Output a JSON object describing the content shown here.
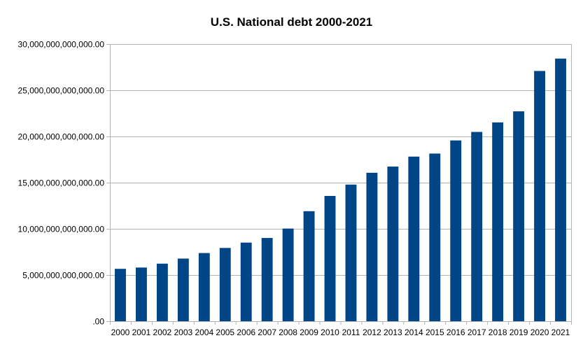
{
  "chart_data": {
    "type": "bar",
    "title": "U.S. National debt 2000-2021",
    "xlabel": "",
    "ylabel": "",
    "categories": [
      "2000",
      "2001",
      "2002",
      "2003",
      "2004",
      "2005",
      "2006",
      "2007",
      "2008",
      "2009",
      "2010",
      "2011",
      "2012",
      "2013",
      "2014",
      "2015",
      "2016",
      "2017",
      "2018",
      "2019",
      "2020",
      "2021"
    ],
    "series": [
      {
        "values": [
          5670000000000,
          5810000000000,
          6230000000000,
          6780000000000,
          7380000000000,
          7930000000000,
          8510000000000,
          9010000000000,
          10030000000000,
          11910000000000,
          13560000000000,
          14790000000000,
          16070000000000,
          16740000000000,
          17820000000000,
          18150000000000,
          19570000000000,
          20490000000000,
          21520000000000,
          22720000000000,
          27090000000000,
          28430000000000
        ]
      }
    ],
    "ylim": [
      0,
      30000000000000
    ],
    "y_ticks": [
      0,
      5000000000000,
      10000000000000,
      15000000000000,
      20000000000000,
      25000000000000,
      30000000000000
    ],
    "y_tick_labels": [
      ".00",
      "5,000,000,000,000.00",
      "10,000,000,000,000.00",
      "15,000,000,000,000.00",
      "20,000,000,000,000.00",
      "25,000,000,000,000.00",
      "30,000,000,000,000.00"
    ],
    "grid": true,
    "legend": "none",
    "bar_color": "#004586",
    "grid_color": "#b3b3b3"
  }
}
